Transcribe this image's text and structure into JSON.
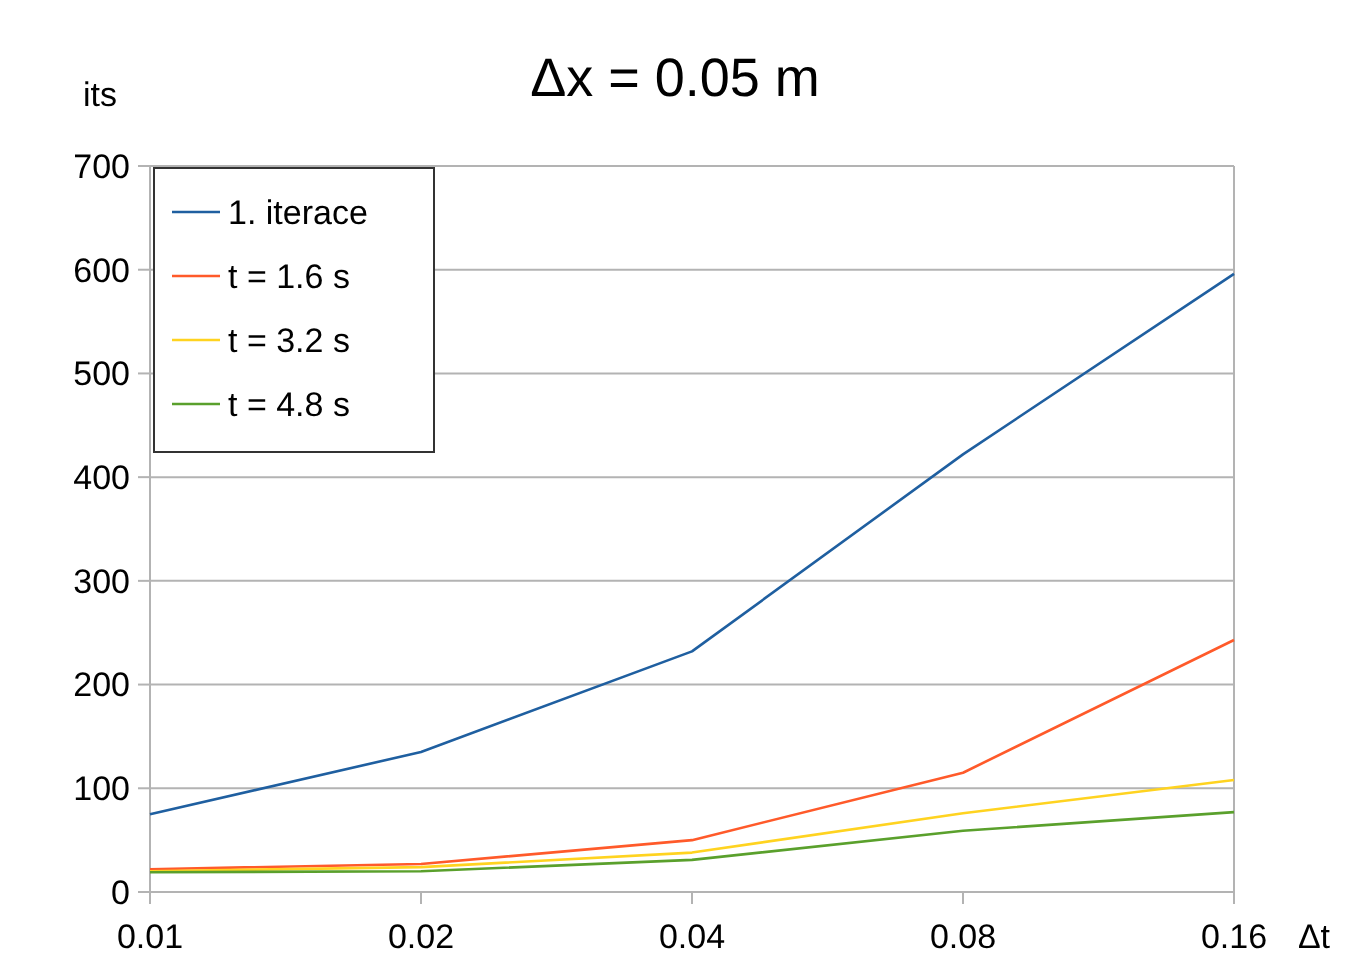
{
  "chart_data": {
    "type": "line",
    "title": "Δx = 0.05 m",
    "xlabel": "Δt",
    "ylabel": "its",
    "categories": [
      "0.01",
      "0.02",
      "0.04",
      "0.08",
      "0.16"
    ],
    "series": [
      {
        "name": "1. iterace",
        "color": "#1f5fa0",
        "values": [
          75,
          135,
          232,
          422,
          596
        ]
      },
      {
        "name": "t = 1.6 s",
        "color": "#ff5a2a",
        "values": [
          22,
          27,
          50,
          115,
          243
        ]
      },
      {
        "name": "t = 3.2 s",
        "color": "#ffd320",
        "values": [
          20,
          24,
          38,
          76,
          108
        ]
      },
      {
        "name": "t = 4.8 s",
        "color": "#5aa02c",
        "values": [
          19,
          20,
          31,
          59,
          77
        ]
      }
    ],
    "ylim": [
      0,
      700
    ],
    "yticks": [
      0,
      100,
      200,
      300,
      400,
      500,
      600,
      700
    ],
    "grid": "y",
    "legend": "top left",
    "marker": "none",
    "line_style": "solid"
  }
}
